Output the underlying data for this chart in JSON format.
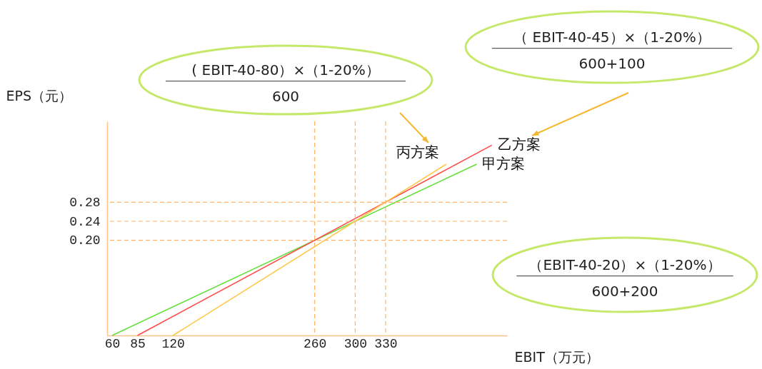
{
  "chart_data": {
    "type": "line",
    "xlabel": "EBIT（万元）",
    "ylabel": "EPS（元）",
    "xlim": [
      55,
      450
    ],
    "ylim": [
      0,
      0.45
    ],
    "xticks": [
      60,
      85,
      120,
      260,
      300,
      330
    ],
    "yticks": [
      {
        "value": 0.2,
        "label": "0.20"
      },
      {
        "value": 0.24,
        "label": "0.24"
      },
      {
        "value": 0.28,
        "label": "0.28"
      }
    ],
    "grid": false,
    "legend": false,
    "series": [
      {
        "name": "甲方案",
        "color": "#66e03c",
        "x": [
          60,
          420
        ],
        "values": [
          0,
          0.36
        ]
      },
      {
        "name": "乙方案",
        "color": "#ff4a4a",
        "x": [
          85,
          435
        ],
        "values": [
          0,
          0.4
        ]
      },
      {
        "name": "丙方案",
        "color": "#ffc84a",
        "x": [
          120,
          390
        ],
        "values": [
          0,
          0.36
        ]
      }
    ],
    "ref_lines": [
      {
        "axis": "x",
        "value": 260,
        "color": "#ffb36b",
        "line_style": "dashed"
      },
      {
        "axis": "x",
        "value": 300,
        "color": "#ffb36b",
        "line_style": "dashed"
      },
      {
        "axis": "x",
        "value": 330,
        "color": "#ffb36b",
        "line_style": "dashed"
      },
      {
        "axis": "y",
        "value": 0.2,
        "color": "#ffb36b",
        "line_style": "dashed"
      },
      {
        "axis": "y",
        "value": 0.24,
        "color": "#ffb36b",
        "line_style": "dashed"
      },
      {
        "axis": "y",
        "value": 0.28,
        "color": "#ffb36b",
        "line_style": "dashed"
      }
    ],
    "annotations": [
      "( EBIT-40-80）×（1-20%）",
      "600",
      "（ EBIT-40-45）×（1-20%）",
      "600+100",
      "（EBIT-40-20）×（1-20%）",
      "600+200"
    ]
  }
}
